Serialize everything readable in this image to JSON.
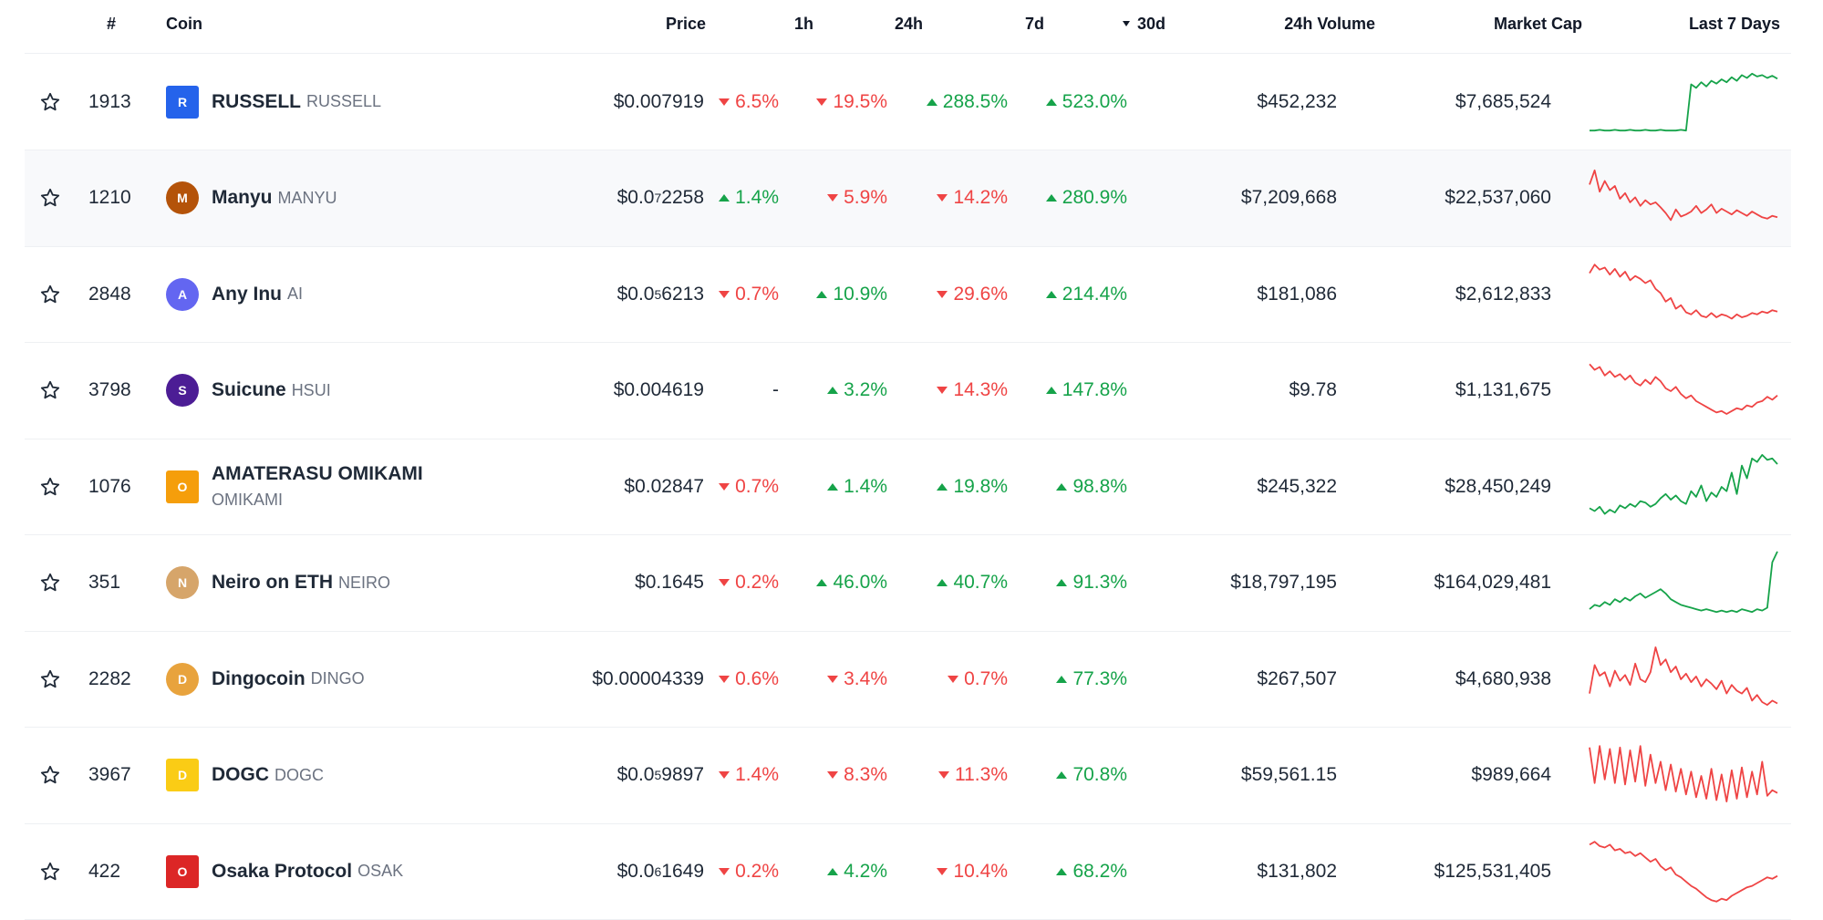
{
  "headers": {
    "rank": "#",
    "coin": "Coin",
    "price": "Price",
    "h1": "1h",
    "h24": "24h",
    "d7": "7d",
    "d30": "30d",
    "volume": "24h Volume",
    "mcap": "Market Cap",
    "last7": "Last 7 Days"
  },
  "rows": [
    {
      "rank": "1913",
      "name": "RUSSELL",
      "symbol": "RUSSELL",
      "price_main": "$0.007919",
      "price_sub": "",
      "price_tail": "",
      "h1": "6.5%",
      "h1_dir": "down",
      "h24": "19.5%",
      "h24_dir": "down",
      "d7": "288.5%",
      "d7_dir": "up",
      "d30": "523.0%",
      "d30_dir": "up",
      "volume": "$452,232",
      "mcap": "$7,685,524",
      "trend": "up",
      "logo_color": "#2563eb",
      "logo_text": "R",
      "logo_shape": "sq",
      "spark": [
        0.1,
        0.1,
        0.11,
        0.1,
        0.1,
        0.11,
        0.1,
        0.1,
        0.11,
        0.1,
        0.1,
        0.11,
        0.1,
        0.1,
        0.11,
        0.1,
        0.1,
        0.1,
        0.11,
        0.1,
        0.75,
        0.7,
        0.78,
        0.72,
        0.8,
        0.76,
        0.82,
        0.78,
        0.85,
        0.8,
        0.88,
        0.84,
        0.9,
        0.86,
        0.88,
        0.84,
        0.87,
        0.83
      ]
    },
    {
      "rank": "1210",
      "name": "Manyu",
      "symbol": "MANYU",
      "price_main": "$0.0",
      "price_sub": "7",
      "price_tail": "2258",
      "h1": "1.4%",
      "h1_dir": "up",
      "h24": "5.9%",
      "h24_dir": "down",
      "d7": "14.2%",
      "d7_dir": "down",
      "d30": "280.9%",
      "d30_dir": "up",
      "volume": "$7,209,668",
      "mcap": "$22,537,060",
      "trend": "down",
      "logo_color": "#b45309",
      "logo_text": "M",
      "logo_shape": "",
      "spark": [
        0.7,
        0.9,
        0.6,
        0.75,
        0.62,
        0.68,
        0.5,
        0.58,
        0.45,
        0.52,
        0.4,
        0.48,
        0.42,
        0.45,
        0.38,
        0.3,
        0.2,
        0.35,
        0.25,
        0.28,
        0.32,
        0.4,
        0.3,
        0.35,
        0.42,
        0.3,
        0.36,
        0.32,
        0.28,
        0.34,
        0.3,
        0.26,
        0.32,
        0.28,
        0.24,
        0.22,
        0.26,
        0.24
      ]
    },
    {
      "rank": "2848",
      "name": "Any Inu",
      "symbol": "AI",
      "price_main": "$0.0",
      "price_sub": "5",
      "price_tail": "6213",
      "h1": "0.7%",
      "h1_dir": "down",
      "h24": "10.9%",
      "h24_dir": "up",
      "d7": "29.6%",
      "d7_dir": "down",
      "d30": "214.4%",
      "d30_dir": "up",
      "volume": "$181,086",
      "mcap": "$2,612,833",
      "trend": "down",
      "logo_color": "#6366f1",
      "logo_text": "A",
      "logo_shape": "",
      "spark": [
        0.8,
        0.92,
        0.85,
        0.88,
        0.78,
        0.86,
        0.75,
        0.82,
        0.7,
        0.76,
        0.72,
        0.66,
        0.7,
        0.58,
        0.52,
        0.4,
        0.45,
        0.3,
        0.35,
        0.25,
        0.22,
        0.28,
        0.2,
        0.18,
        0.24,
        0.18,
        0.22,
        0.2,
        0.16,
        0.22,
        0.18,
        0.2,
        0.24,
        0.22,
        0.26,
        0.24,
        0.28,
        0.26
      ]
    },
    {
      "rank": "3798",
      "name": "Suicune",
      "symbol": "HSUI",
      "price_main": "$0.004619",
      "price_sub": "",
      "price_tail": "",
      "h1": "-",
      "h1_dir": "none",
      "h24": "3.2%",
      "h24_dir": "up",
      "d7": "14.3%",
      "d7_dir": "down",
      "d30": "147.8%",
      "d30_dir": "up",
      "volume": "$9.78",
      "mcap": "$1,131,675",
      "trend": "down",
      "logo_color": "#4c1d95",
      "logo_text": "S",
      "logo_shape": "",
      "spark": [
        0.88,
        0.8,
        0.84,
        0.72,
        0.78,
        0.7,
        0.74,
        0.66,
        0.72,
        0.62,
        0.58,
        0.66,
        0.6,
        0.7,
        0.64,
        0.54,
        0.5,
        0.56,
        0.46,
        0.4,
        0.44,
        0.36,
        0.32,
        0.28,
        0.24,
        0.2,
        0.22,
        0.18,
        0.22,
        0.26,
        0.24,
        0.3,
        0.28,
        0.34,
        0.36,
        0.42,
        0.38,
        0.44
      ]
    },
    {
      "rank": "1076",
      "name": "AMATERASU OMIKAMI",
      "symbol": "OMIKAMI",
      "price_main": "$0.02847",
      "price_sub": "",
      "price_tail": "",
      "h1": "0.7%",
      "h1_dir": "down",
      "h24": "1.4%",
      "h24_dir": "up",
      "d7": "19.8%",
      "d7_dir": "up",
      "d30": "98.8%",
      "d30_dir": "up",
      "volume": "$245,322",
      "mcap": "$28,450,249",
      "trend": "up",
      "logo_color": "#f59e0b",
      "logo_text": "O",
      "logo_shape": "sq",
      "spark": [
        0.2,
        0.16,
        0.22,
        0.12,
        0.18,
        0.14,
        0.24,
        0.2,
        0.26,
        0.22,
        0.3,
        0.28,
        0.22,
        0.26,
        0.34,
        0.4,
        0.32,
        0.38,
        0.3,
        0.26,
        0.44,
        0.36,
        0.52,
        0.3,
        0.42,
        0.36,
        0.5,
        0.44,
        0.7,
        0.4,
        0.8,
        0.62,
        0.9,
        0.85,
        0.95,
        0.88,
        0.9,
        0.82
      ]
    },
    {
      "rank": "351",
      "name": "Neiro on ETH",
      "symbol": "NEIRO",
      "price_main": "$0.1645",
      "price_sub": "",
      "price_tail": "",
      "h1": "0.2%",
      "h1_dir": "down",
      "h24": "46.0%",
      "h24_dir": "up",
      "d7": "40.7%",
      "d7_dir": "up",
      "d30": "91.3%",
      "d30_dir": "up",
      "volume": "$18,797,195",
      "mcap": "$164,029,481",
      "trend": "up",
      "logo_color": "#d6a56a",
      "logo_text": "N",
      "logo_shape": "",
      "spark": [
        0.14,
        0.2,
        0.18,
        0.24,
        0.2,
        0.28,
        0.24,
        0.3,
        0.26,
        0.32,
        0.36,
        0.3,
        0.34,
        0.38,
        0.42,
        0.36,
        0.28,
        0.24,
        0.2,
        0.18,
        0.16,
        0.14,
        0.12,
        0.14,
        0.12,
        0.1,
        0.12,
        0.1,
        0.12,
        0.1,
        0.14,
        0.12,
        0.1,
        0.14,
        0.12,
        0.16,
        0.8,
        0.95
      ]
    },
    {
      "rank": "2282",
      "name": "Dingocoin",
      "symbol": "DINGO",
      "price_main": "$0.00004339",
      "price_sub": "",
      "price_tail": "",
      "h1": "0.6%",
      "h1_dir": "down",
      "h24": "3.4%",
      "h24_dir": "down",
      "d7": "0.7%",
      "d7_dir": "down",
      "d30": "77.3%",
      "d30_dir": "up",
      "volume": "$267,507",
      "mcap": "$4,680,938",
      "trend": "down",
      "logo_color": "#e8a33d",
      "logo_text": "D",
      "logo_shape": "",
      "spark": [
        0.3,
        0.7,
        0.55,
        0.6,
        0.4,
        0.62,
        0.48,
        0.56,
        0.42,
        0.72,
        0.5,
        0.46,
        0.6,
        0.95,
        0.7,
        0.78,
        0.6,
        0.68,
        0.5,
        0.58,
        0.46,
        0.54,
        0.4,
        0.5,
        0.44,
        0.36,
        0.48,
        0.3,
        0.42,
        0.34,
        0.3,
        0.38,
        0.2,
        0.28,
        0.18,
        0.14,
        0.2,
        0.16
      ]
    },
    {
      "rank": "3967",
      "name": "DOGC",
      "symbol": "DOGC",
      "price_main": "$0.0",
      "price_sub": "5",
      "price_tail": "9897",
      "h1": "1.4%",
      "h1_dir": "down",
      "h24": "8.3%",
      "h24_dir": "down",
      "d7": "11.3%",
      "d7_dir": "down",
      "d30": "70.8%",
      "d30_dir": "up",
      "volume": "$59,561.15",
      "mcap": "$989,664",
      "trend": "down",
      "logo_color": "#facc15",
      "logo_text": "D",
      "logo_shape": "sq",
      "spark": [
        0.9,
        0.4,
        0.92,
        0.45,
        0.88,
        0.4,
        0.9,
        0.38,
        0.86,
        0.42,
        0.92,
        0.36,
        0.8,
        0.4,
        0.7,
        0.3,
        0.66,
        0.28,
        0.6,
        0.24,
        0.56,
        0.2,
        0.5,
        0.18,
        0.6,
        0.16,
        0.52,
        0.14,
        0.58,
        0.18,
        0.62,
        0.2,
        0.56,
        0.24,
        0.7,
        0.22,
        0.3,
        0.26
      ]
    },
    {
      "rank": "422",
      "name": "Osaka Protocol",
      "symbol": "OSAK",
      "price_main": "$0.0",
      "price_sub": "6",
      "price_tail": "1649",
      "h1": "0.2%",
      "h1_dir": "down",
      "h24": "4.2%",
      "h24_dir": "up",
      "d7": "10.4%",
      "d7_dir": "down",
      "d30": "68.2%",
      "d30_dir": "up",
      "volume": "$131,802",
      "mcap": "$125,531,405",
      "trend": "down",
      "logo_color": "#dc2626",
      "logo_text": "O",
      "logo_shape": "sq",
      "spark": [
        0.88,
        0.92,
        0.86,
        0.84,
        0.88,
        0.8,
        0.82,
        0.76,
        0.78,
        0.72,
        0.76,
        0.7,
        0.64,
        0.68,
        0.58,
        0.52,
        0.56,
        0.46,
        0.42,
        0.36,
        0.3,
        0.26,
        0.2,
        0.14,
        0.1,
        0.08,
        0.12,
        0.1,
        0.16,
        0.2,
        0.24,
        0.28,
        0.3,
        0.34,
        0.38,
        0.42,
        0.4,
        0.44
      ]
    }
  ],
  "colors": {
    "up": "#16a34a",
    "down": "#ef4444"
  }
}
